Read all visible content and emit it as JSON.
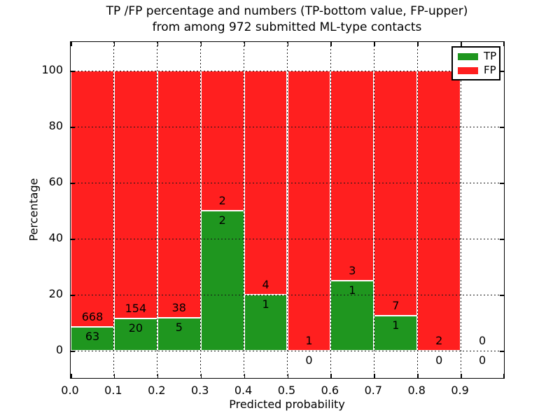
{
  "title": {
    "line1": "TP /FP percentage and numbers (TP-bottom value, FP-upper)",
    "line2": "from among 972 submitted ML-type contacts"
  },
  "chart_data": {
    "type": "bar",
    "stacked": true,
    "normalized_to_percent": true,
    "total_contacts": 972,
    "title": "TP /FP percentage and numbers (TP-bottom value, FP-upper) from among 972 submitted ML-type contacts",
    "xlabel": "Predicted probability",
    "ylabel": "Percentage",
    "bin_edges": [
      0.0,
      0.1,
      0.2,
      0.3,
      0.4,
      0.5,
      0.6,
      0.7,
      0.8,
      0.9,
      1.0
    ],
    "categories": [
      "0.0-0.1",
      "0.1-0.2",
      "0.2-0.3",
      "0.3-0.4",
      "0.4-0.5",
      "0.5-0.6",
      "0.6-0.7",
      "0.7-0.8",
      "0.8-0.9",
      "0.9-1.0"
    ],
    "series": [
      {
        "name": "TP",
        "color": "#1f961f",
        "counts": [
          63,
          20,
          5,
          2,
          1,
          0,
          1,
          1,
          0,
          0
        ],
        "percentages": [
          8.62,
          11.49,
          11.63,
          50.0,
          20.0,
          0.0,
          25.0,
          12.5,
          0.0,
          null
        ]
      },
      {
        "name": "FP",
        "color": "#ff1f1f",
        "counts": [
          668,
          154,
          38,
          2,
          4,
          1,
          3,
          7,
          2,
          0
        ],
        "percentages": [
          91.38,
          88.51,
          88.37,
          50.0,
          80.0,
          100.0,
          75.0,
          87.5,
          100.0,
          null
        ]
      }
    ],
    "x_tick_labels": [
      "0.0",
      "0.1",
      "0.2",
      "0.3",
      "0.4",
      "0.5",
      "0.6",
      "0.7",
      "0.8",
      "0.9"
    ],
    "y_tick_labels": [
      "0",
      "20",
      "40",
      "60",
      "80",
      "100"
    ],
    "y_tick_values": [
      0,
      20,
      40,
      60,
      80,
      100
    ],
    "xlim": [
      0.0,
      1.0
    ],
    "ylim": [
      -10,
      110
    ],
    "grid": "dotted-black",
    "bar_edge_color": "#ffffff",
    "legend": {
      "position": "upper-right",
      "entries": [
        {
          "label": "TP",
          "color": "#1f961f"
        },
        {
          "label": "FP",
          "color": "#ff1f1f"
        }
      ]
    },
    "annotation_note": "FP count printed above each TP/FP boundary, TP count printed below it"
  }
}
